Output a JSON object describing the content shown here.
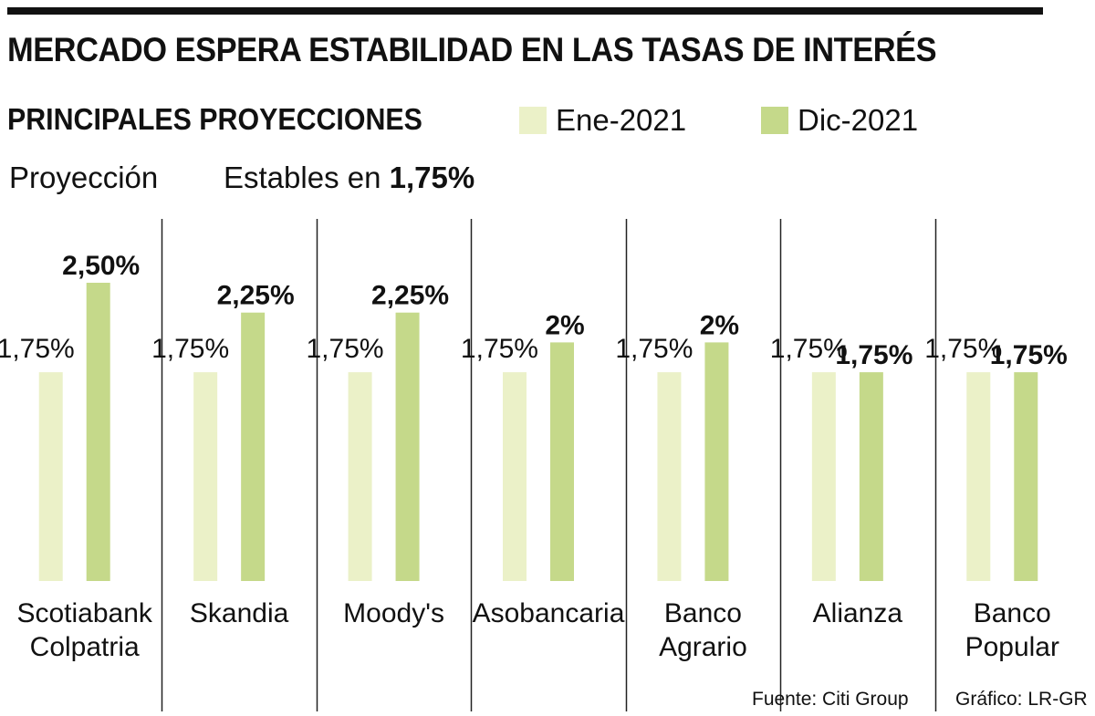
{
  "header": {
    "title": "MERCADO ESPERA ESTABILIDAD EN LAS TASAS DE INTERÉS",
    "subtitle": "PRINCIPALES PROYECCIONES"
  },
  "legend": [
    {
      "label": "Ene-2021",
      "color": "#ebf1c8"
    },
    {
      "label": "Dic-2021",
      "color": "#c5d98a"
    }
  ],
  "projection": {
    "label": "Proyección",
    "text": "Estables en",
    "value": "1,75%"
  },
  "chart_data": {
    "type": "bar",
    "title": "PRINCIPALES PROYECCIONES",
    "xlabel": "",
    "ylabel": "",
    "ylim": [
      0,
      2.5
    ],
    "grid": false,
    "legend_position": "top-right",
    "categories": [
      [
        "Scotiabank",
        "Colpatria"
      ],
      [
        "Skandia"
      ],
      [
        "Moody's"
      ],
      [
        "Asobancaria"
      ],
      [
        "Banco",
        "Agrario"
      ],
      [
        "Alianza"
      ],
      [
        "Banco",
        "Popular"
      ]
    ],
    "series": [
      {
        "name": "Ene-2021",
        "color": "#ebf1c8",
        "values": [
          1.75,
          1.75,
          1.75,
          1.75,
          1.75,
          1.75,
          1.75
        ],
        "labels": [
          "1,75%",
          "1,75%",
          "1,75%",
          "1,75%",
          "1,75%",
          "1,75%",
          "1,75%"
        ]
      },
      {
        "name": "Dic-2021",
        "color": "#c5d98a",
        "values": [
          2.5,
          2.25,
          2.25,
          2.0,
          2.0,
          1.75,
          1.75
        ],
        "labels": [
          "2,50%",
          "2,25%",
          "2,25%",
          "2%",
          "2%",
          "1,75%",
          "1,75%"
        ]
      }
    ]
  },
  "footer": {
    "source": "Fuente: Citi Group",
    "credit": "Gráfico: LR-GR"
  }
}
